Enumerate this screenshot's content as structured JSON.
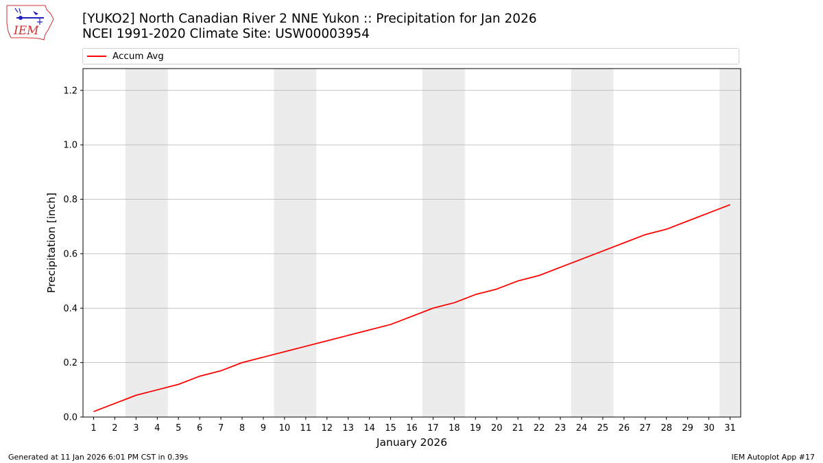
{
  "logo": {
    "text": "IEM"
  },
  "title": {
    "line1": "[YUKO2] North Canadian River 2 NNE Yukon :: Precipitation for Jan 2026",
    "line2": "NCEI 1991-2020 Climate Site: USW00003954"
  },
  "footer": {
    "left": "Generated at 11 Jan 2026 6:01 PM CST in 0.39s",
    "right": "IEM Autoplot App #17"
  },
  "colors": {
    "series": "#ff0000",
    "weekend_band": "#ececec",
    "grid": "#b0b0b0"
  },
  "chart_data": {
    "type": "line",
    "xlabel": "January 2026",
    "ylabel": "Precipitation [inch]",
    "xlim": [
      0.5,
      31.5
    ],
    "ylim": [
      0,
      1.28
    ],
    "grid": "horizontal",
    "legend_placement": "top",
    "x": [
      1,
      2,
      3,
      4,
      5,
      6,
      7,
      8,
      9,
      10,
      11,
      12,
      13,
      14,
      15,
      16,
      17,
      18,
      19,
      20,
      21,
      22,
      23,
      24,
      25,
      26,
      27,
      28,
      29,
      30,
      31
    ],
    "x_ticks": [
      "1",
      "2",
      "3",
      "4",
      "5",
      "6",
      "7",
      "8",
      "9",
      "10",
      "11",
      "12",
      "13",
      "14",
      "15",
      "16",
      "17",
      "18",
      "19",
      "20",
      "21",
      "22",
      "23",
      "24",
      "25",
      "26",
      "27",
      "28",
      "29",
      "30",
      "31"
    ],
    "y_ticks": [
      "0.0",
      "0.2",
      "0.4",
      "0.6",
      "0.8",
      "1.0",
      "1.2"
    ],
    "weekend_bands": [
      [
        2.5,
        4.5
      ],
      [
        9.5,
        11.5
      ],
      [
        16.5,
        18.5
      ],
      [
        23.5,
        25.5
      ],
      [
        30.5,
        31.5
      ]
    ],
    "series": [
      {
        "name": "Accum Avg",
        "values": [
          0.02,
          0.05,
          0.08,
          0.1,
          0.12,
          0.15,
          0.17,
          0.2,
          0.22,
          0.24,
          0.26,
          0.28,
          0.3,
          0.32,
          0.34,
          0.37,
          0.4,
          0.42,
          0.45,
          0.47,
          0.5,
          0.52,
          0.55,
          0.58,
          0.61,
          0.64,
          0.67,
          0.69,
          0.72,
          0.75,
          0.78
        ]
      }
    ]
  }
}
